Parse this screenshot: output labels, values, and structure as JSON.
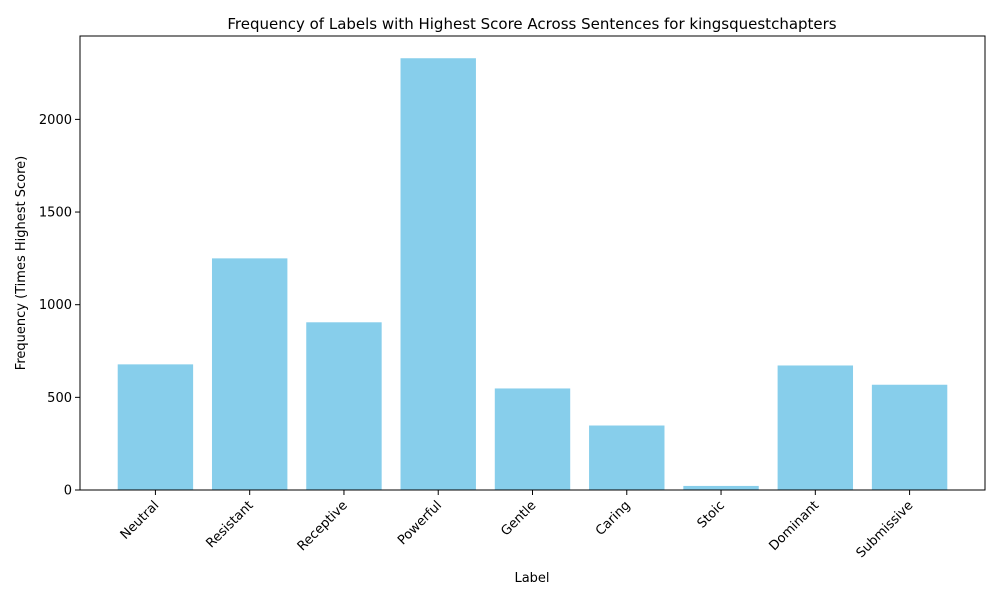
{
  "chart_data": {
    "type": "bar",
    "title": "Frequency of Labels with Highest Score Across Sentences for kingsquestchapters",
    "xlabel": "Label",
    "ylabel": "Frequency (Times Highest Score)",
    "categories": [
      "Neutral",
      "Resistant",
      "Receptive",
      "Powerful",
      "Gentle",
      "Caring",
      "Stoic",
      "Dominant",
      "Submissive"
    ],
    "values": [
      678,
      1250,
      905,
      2330,
      548,
      348,
      22,
      672,
      568
    ],
    "ylim": [
      0,
      2450
    ],
    "yticks": [
      0,
      500,
      1000,
      1500,
      2000
    ],
    "bar_color": "#87ceeb",
    "grid": false,
    "legend": "none"
  }
}
